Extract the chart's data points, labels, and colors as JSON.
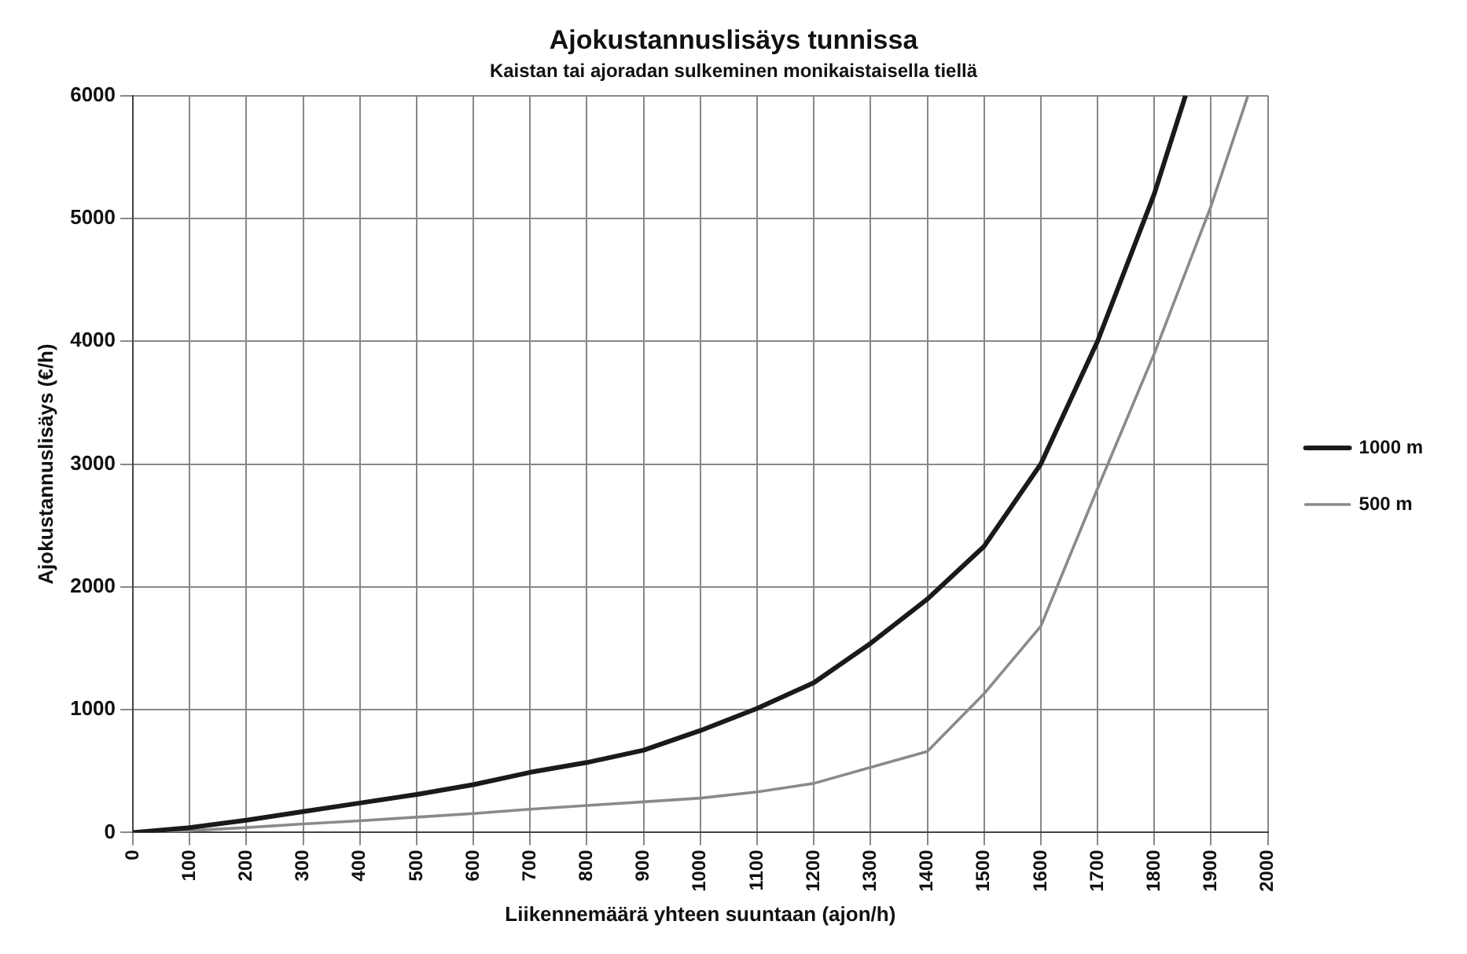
{
  "chart_data": {
    "type": "line",
    "title": "Ajokustannuslisäys tunnissa",
    "subtitle": "Kaistan tai ajoradan sulkeminen monikaistaisella tiellä",
    "xlabel": "Liikennemäärä yhteen suuntaan (ajon/h)",
    "ylabel": "Ajokustannuslisäys (€/h)",
    "series": [
      {
        "name": "1000 m",
        "color": "#1a1a1a",
        "x": [
          0,
          100,
          200,
          300,
          400,
          500,
          600,
          700,
          800,
          900,
          1000,
          1100,
          1200,
          1300,
          1400,
          1500,
          1600,
          1700,
          1800,
          1855
        ],
        "values": [
          0,
          40,
          100,
          170,
          240,
          310,
          390,
          490,
          570,
          670,
          830,
          1010,
          1220,
          1540,
          1900,
          2330,
          3000,
          4000,
          5200,
          6000
        ]
      },
      {
        "name": "500 m",
        "color": "#8a8a8a",
        "x": [
          0,
          100,
          200,
          300,
          400,
          500,
          600,
          700,
          800,
          900,
          1000,
          1100,
          1200,
          1300,
          1400,
          1500,
          1600,
          1700,
          1800,
          1900,
          1965
        ],
        "values": [
          0,
          15,
          40,
          70,
          95,
          125,
          155,
          190,
          220,
          250,
          280,
          330,
          400,
          530,
          660,
          1130,
          1680,
          2800,
          3900,
          5100,
          6000
        ]
      }
    ],
    "xlim": [
      0,
      2000
    ],
    "xticks": [
      0,
      100,
      200,
      300,
      400,
      500,
      600,
      700,
      800,
      900,
      1000,
      1100,
      1200,
      1300,
      1400,
      1500,
      1600,
      1700,
      1800,
      1900,
      2000
    ],
    "ylim": [
      0,
      6000
    ],
    "yticks": [
      0,
      1000,
      2000,
      3000,
      4000,
      5000,
      6000
    ],
    "grid": true,
    "legend": "right",
    "marker": "none",
    "line_style": "solid"
  }
}
